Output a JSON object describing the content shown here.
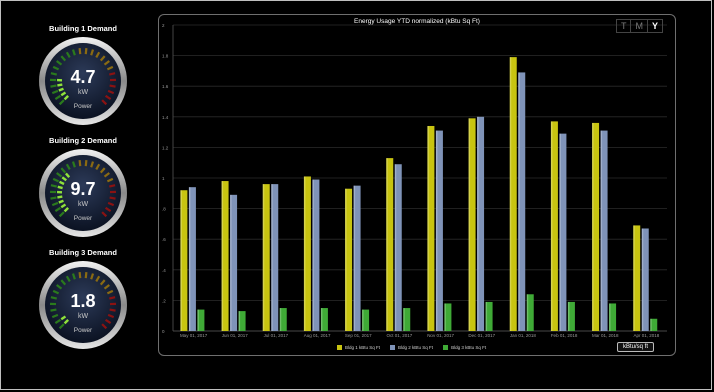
{
  "gauges": [
    {
      "title": "Building 1 Demand",
      "value": "4.7",
      "unit": "kW",
      "label": "Power",
      "level": 0.2
    },
    {
      "title": "Building 2 Demand",
      "value": "9.7",
      "unit": "kW",
      "label": "Power",
      "level": 0.38
    },
    {
      "title": "Building 3 Demand",
      "value": "1.8",
      "unit": "kW",
      "label": "Power",
      "level": 0.08
    }
  ],
  "period_selector": [
    "T",
    "M",
    "Y"
  ],
  "period_selected": "Y",
  "unit_button": "kBtu/sq ft",
  "colors": {
    "b1": "#c8c410",
    "b2": "#7f93b8",
    "b3": "#3faa36"
  },
  "chart_data": {
    "type": "bar",
    "title": "Energy Usage YTD normalized (kBtu Sq Ft)",
    "categories": [
      "May 01, 2017",
      "Jun 01, 2017",
      "Jul 01, 2017",
      "Aug 01, 2017",
      "Sep 01, 2017",
      "Oct 01, 2017",
      "Nov 01, 2017",
      "Dec 01, 2017",
      "Jan 01, 2018",
      "Feb 01, 2018",
      "Mar 01, 2018",
      "Apr 01, 2018"
    ],
    "series": [
      {
        "name": "Bldg 1 kBtu Sq Ft",
        "values": [
          0.92,
          0.98,
          0.96,
          1.01,
          0.93,
          1.13,
          1.34,
          1.39,
          1.79,
          1.37,
          1.36,
          0.69
        ]
      },
      {
        "name": "Bldg 2 kBtu Sq Ft",
        "values": [
          0.94,
          0.89,
          0.96,
          0.99,
          0.95,
          1.09,
          1.31,
          1.4,
          1.69,
          1.29,
          1.31,
          0.67
        ]
      },
      {
        "name": "Bldg 3 kBtu Sq Ft",
        "values": [
          0.14,
          0.13,
          0.15,
          0.15,
          0.14,
          0.15,
          0.18,
          0.19,
          0.24,
          0.19,
          0.18,
          0.08
        ]
      }
    ],
    "yticks": [
      "0",
      ".2",
      ".4",
      ".6",
      ".8",
      "1",
      "1.2",
      "1.4",
      "1.6",
      "1.8",
      "2"
    ],
    "ylim": [
      0,
      2
    ],
    "grid": true,
    "legend_position": "bottom"
  }
}
